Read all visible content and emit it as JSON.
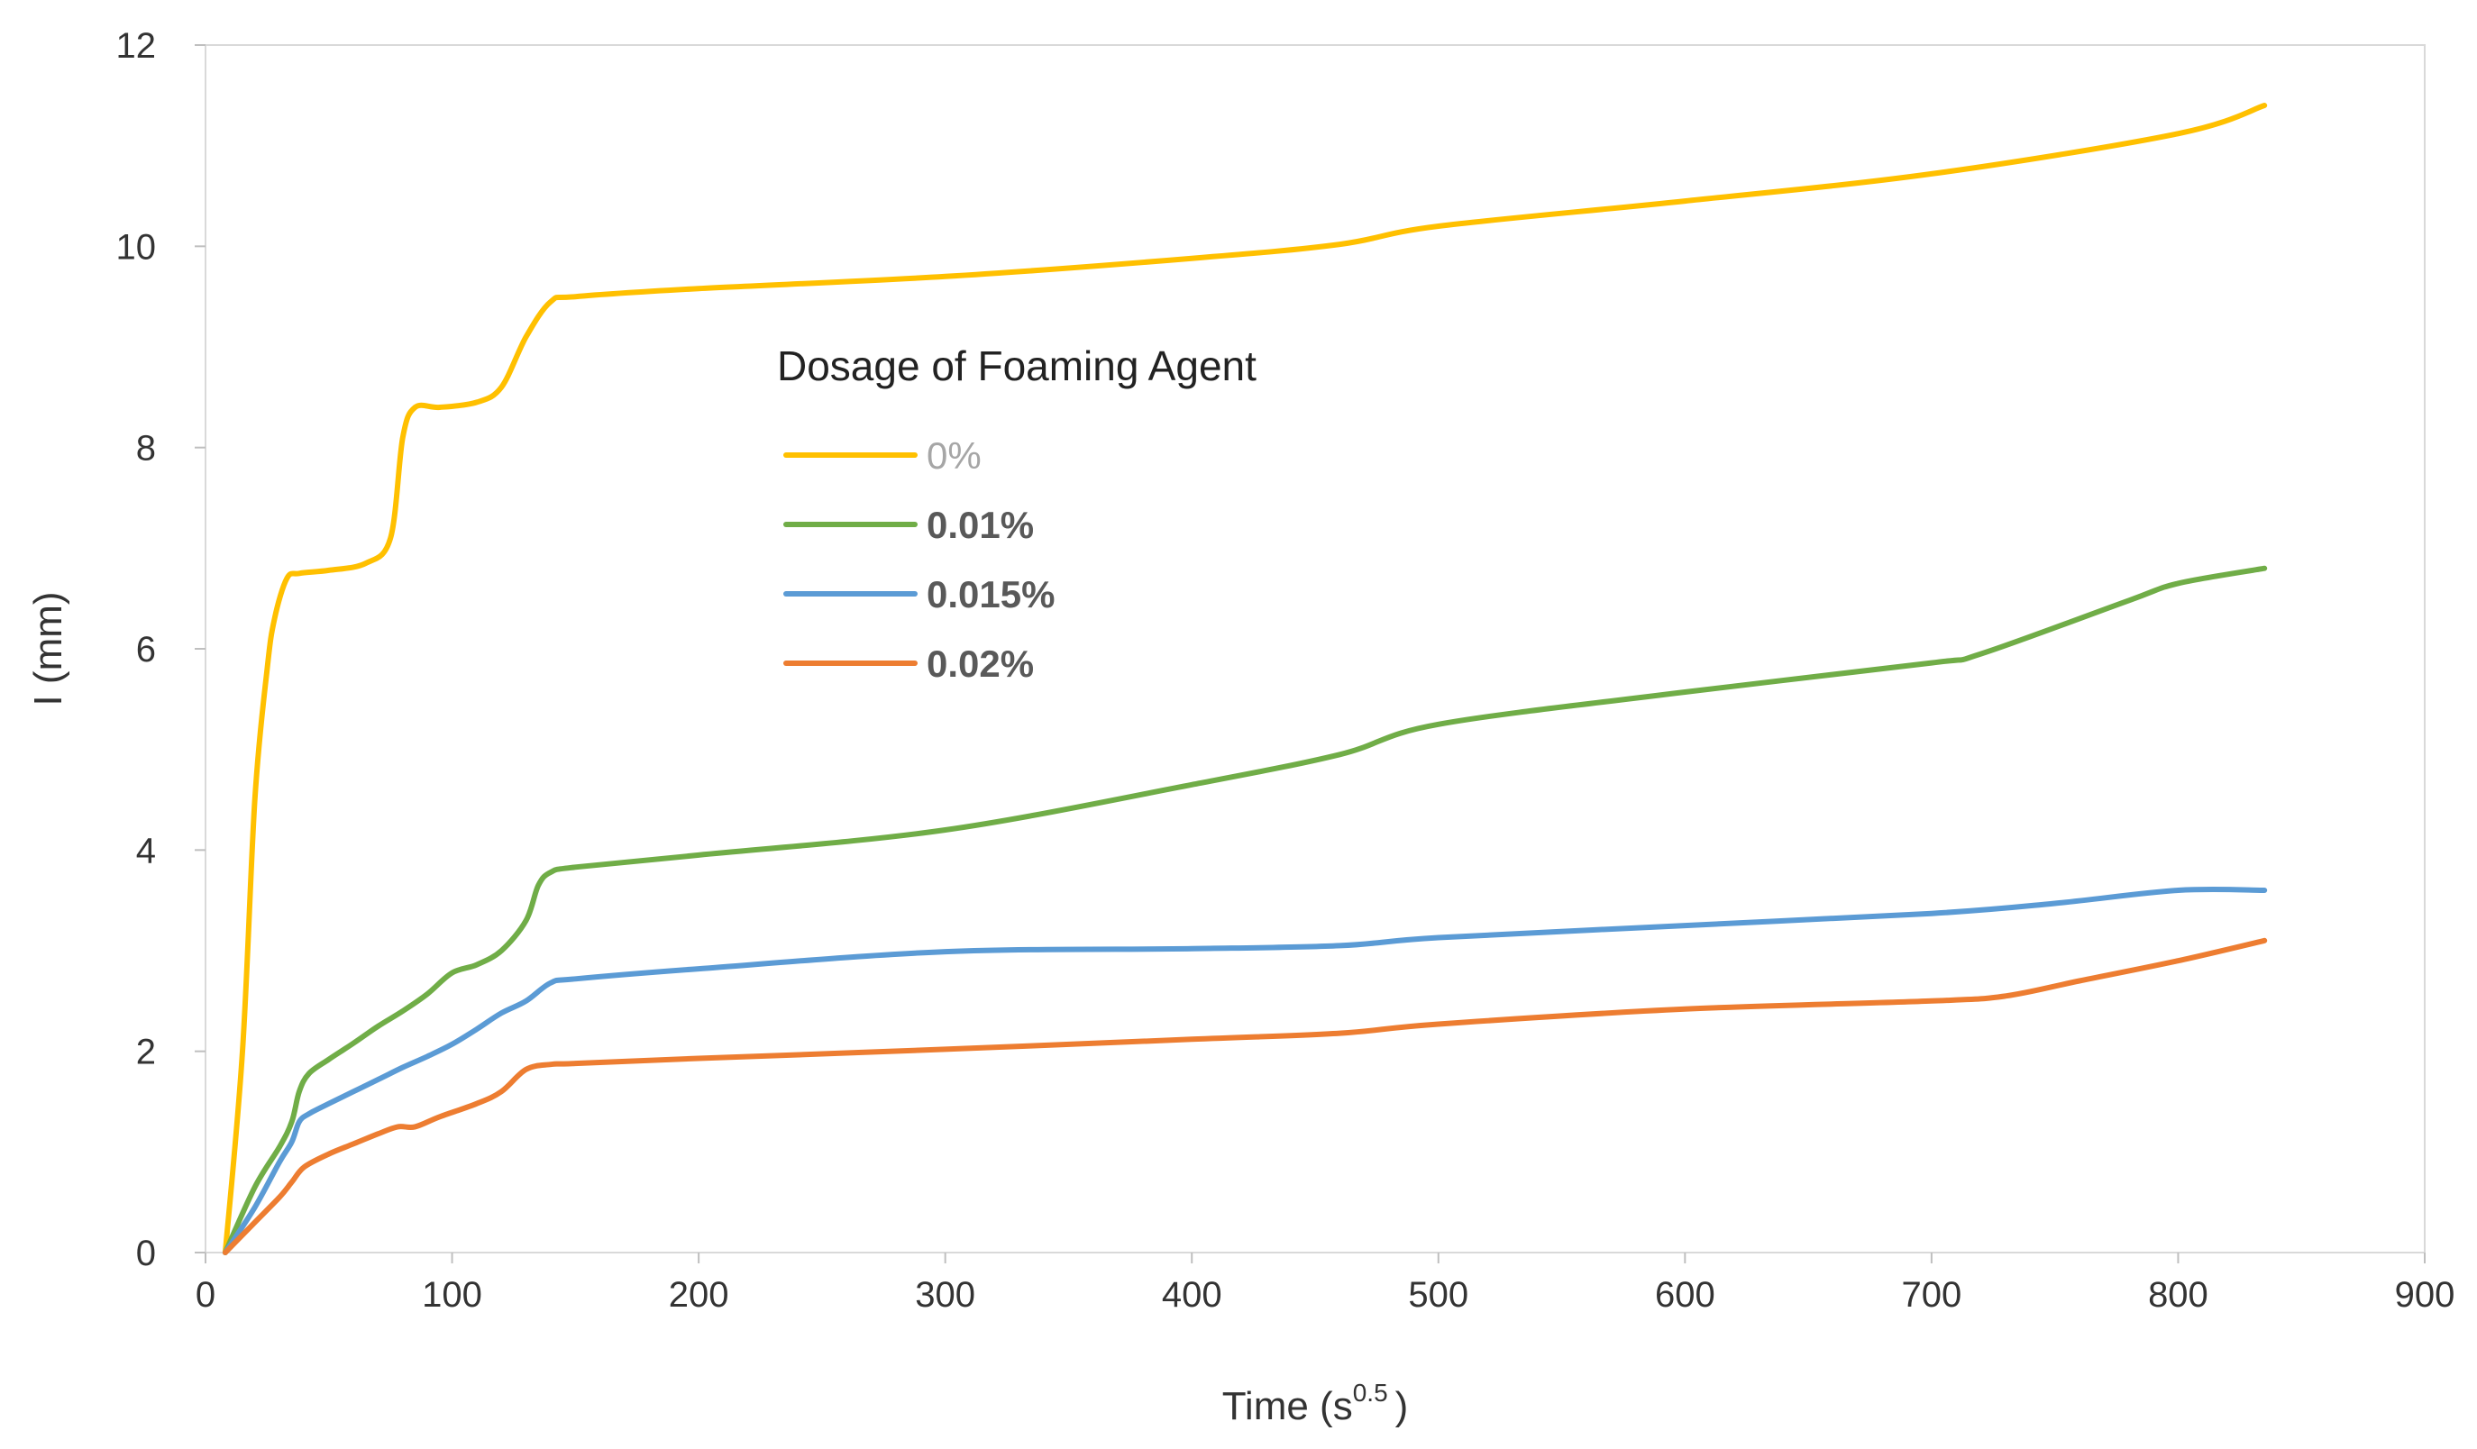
{
  "chart_data": {
    "type": "line",
    "title": "",
    "xlabel": "Time (s",
    "xlabel_sup": "0.5",
    "xlabel_close": ")",
    "ylabel": "I (mm)",
    "xlim": [
      0,
      900
    ],
    "ylim": [
      0,
      12
    ],
    "xticks": [
      0,
      100,
      200,
      300,
      400,
      500,
      600,
      700,
      800,
      900
    ],
    "yticks": [
      0,
      2,
      4,
      6,
      8,
      10,
      12
    ],
    "grid": false,
    "legend": {
      "title": "Dosage of Foaming Agent",
      "position": "center"
    },
    "series": [
      {
        "name": "0%",
        "color": "#FFC000",
        "label_color": "#A6A6A6",
        "x": [
          8,
          15,
          20,
          25,
          28,
          33,
          38,
          50,
          65,
          75,
          80,
          85,
          95,
          110,
          120,
          130,
          140,
          150,
          200,
          300,
          400,
          460,
          500,
          600,
          700,
          800,
          835
        ],
        "y": [
          0,
          2.0,
          4.5,
          5.8,
          6.3,
          6.7,
          6.75,
          6.78,
          6.85,
          7.1,
          8.1,
          8.4,
          8.4,
          8.45,
          8.6,
          9.1,
          9.45,
          9.5,
          9.58,
          9.7,
          9.88,
          10.02,
          10.2,
          10.45,
          10.72,
          11.12,
          11.4
        ]
      },
      {
        "name": "0.01%",
        "color": "#70AD47",
        "label_color": "#595959",
        "x": [
          8,
          20,
          30,
          35,
          38,
          42,
          50,
          60,
          70,
          80,
          90,
          100,
          110,
          120,
          130,
          135,
          140,
          150,
          200,
          300,
          400,
          460,
          500,
          600,
          700,
          720,
          780,
          800,
          835
        ],
        "y": [
          0,
          0.65,
          1.05,
          1.3,
          1.6,
          1.78,
          1.92,
          2.08,
          2.25,
          2.4,
          2.57,
          2.78,
          2.86,
          3.0,
          3.3,
          3.65,
          3.78,
          3.83,
          3.95,
          4.2,
          4.65,
          4.95,
          5.25,
          5.57,
          5.86,
          5.95,
          6.48,
          6.65,
          6.8
        ]
      },
      {
        "name": "0.015%",
        "color": "#5B9BD5",
        "label_color": "#595959",
        "x": [
          8,
          20,
          30,
          35,
          38,
          42,
          50,
          60,
          70,
          80,
          90,
          100,
          110,
          120,
          130,
          140,
          150,
          200,
          300,
          400,
          460,
          500,
          600,
          700,
          750,
          800,
          835
        ],
        "y": [
          0,
          0.45,
          0.9,
          1.1,
          1.3,
          1.38,
          1.48,
          1.6,
          1.72,
          1.84,
          1.95,
          2.07,
          2.22,
          2.38,
          2.5,
          2.68,
          2.72,
          2.82,
          2.99,
          3.02,
          3.05,
          3.13,
          3.25,
          3.37,
          3.47,
          3.6,
          3.6
        ]
      },
      {
        "name": "0.02%",
        "color": "#ED7D31",
        "label_color": "#595959",
        "x": [
          8,
          20,
          30,
          35,
          40,
          50,
          60,
          70,
          78,
          85,
          95,
          110,
          120,
          130,
          140,
          150,
          200,
          300,
          400,
          460,
          500,
          600,
          700,
          730,
          760,
          800,
          835
        ],
        "y": [
          0,
          0.3,
          0.55,
          0.7,
          0.85,
          0.98,
          1.08,
          1.18,
          1.25,
          1.25,
          1.35,
          1.48,
          1.6,
          1.82,
          1.87,
          1.88,
          1.93,
          2.02,
          2.12,
          2.18,
          2.27,
          2.42,
          2.5,
          2.55,
          2.7,
          2.9,
          3.1
        ]
      }
    ]
  }
}
